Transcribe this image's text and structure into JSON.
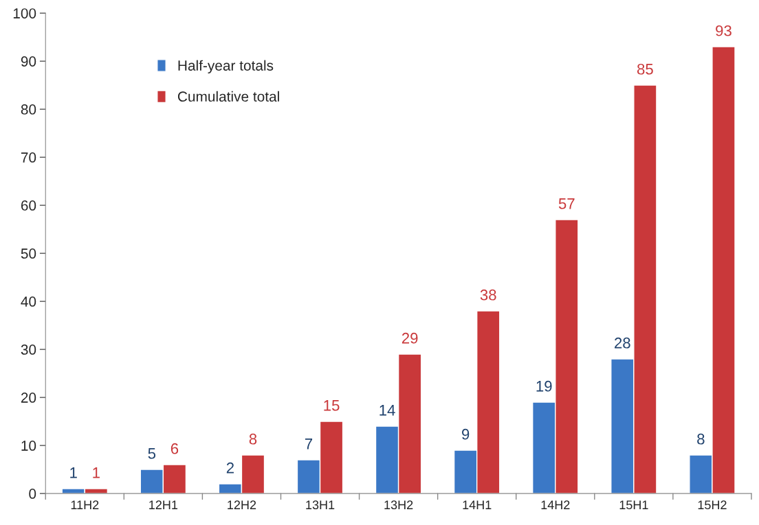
{
  "chart_data": {
    "type": "bar",
    "categories": [
      "11H2",
      "12H1",
      "12H2",
      "13H1",
      "13H2",
      "14H1",
      "14H2",
      "15H1",
      "15H2"
    ],
    "series": [
      {
        "name": "Half-year totals",
        "color": "#3b78c6",
        "values": [
          1,
          5,
          2,
          7,
          14,
          9,
          19,
          28,
          8
        ]
      },
      {
        "name": "Cumulative total",
        "color": "#c9383a",
        "values": [
          1,
          6,
          8,
          15,
          29,
          38,
          57,
          85,
          93
        ]
      }
    ],
    "ylim": [
      0,
      100
    ],
    "yticks": [
      0,
      10,
      20,
      30,
      40,
      50,
      60,
      70,
      80,
      90,
      100
    ],
    "data_labels": true,
    "grid": false,
    "legend": "top left"
  }
}
